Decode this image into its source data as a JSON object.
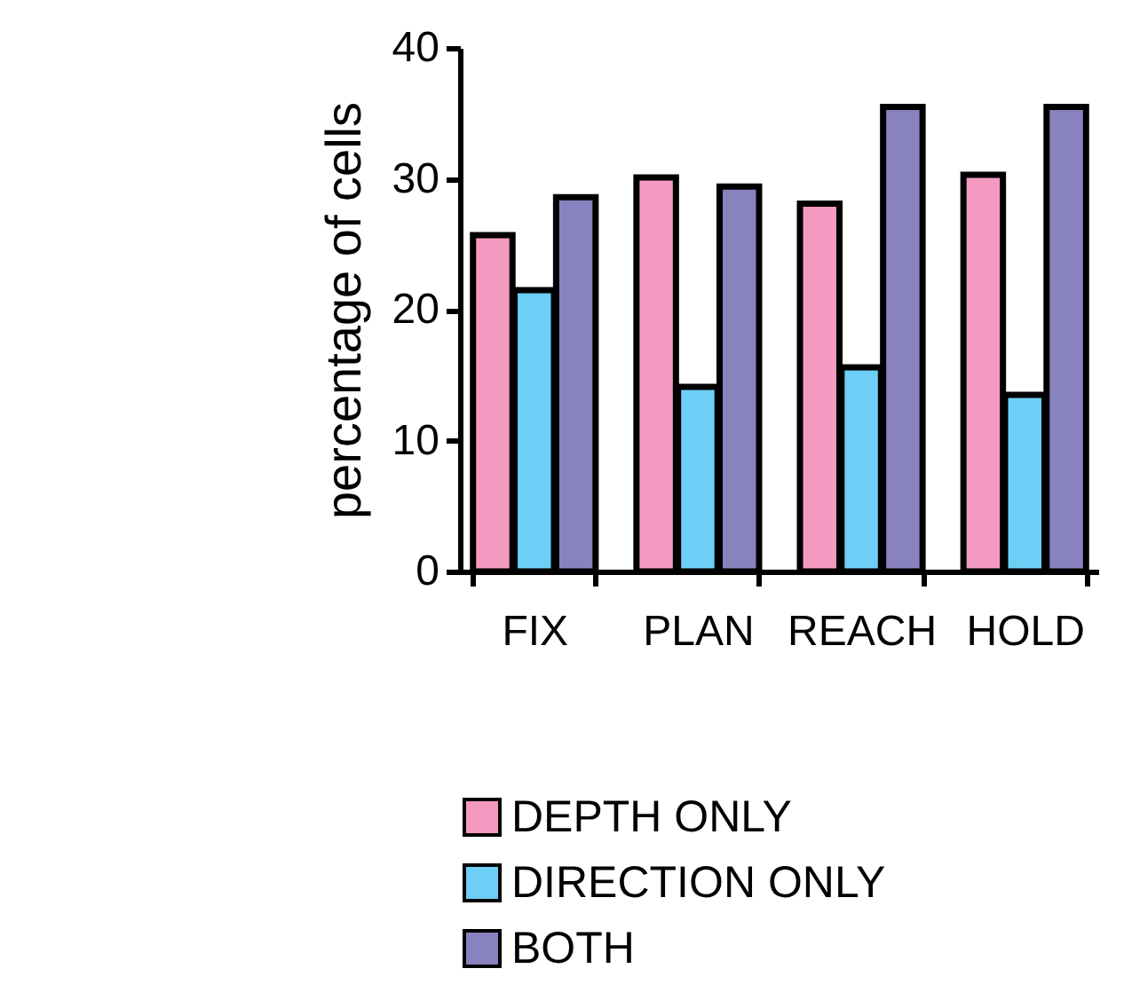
{
  "chart_data": {
    "type": "bar",
    "ylabel": "percentage of cells",
    "categories": [
      "FIX",
      "PLAN",
      "REACH",
      "HOLD"
    ],
    "series": [
      {
        "name": "DEPTH ONLY",
        "color": "#f49ac1",
        "values": [
          25.7,
          30.1,
          28.1,
          30.3
        ]
      },
      {
        "name": "DIRECTION ONLY",
        "color": "#6dcff6",
        "values": [
          21.5,
          14.1,
          15.6,
          13.5
        ]
      },
      {
        "name": "BOTH",
        "color": "#8882be",
        "values": [
          28.6,
          29.4,
          35.5,
          35.5
        ]
      }
    ],
    "ylim": [
      0,
      40
    ],
    "yticks": [
      0,
      10,
      20,
      30,
      40
    ],
    "grid": false,
    "legend": "bottom"
  }
}
